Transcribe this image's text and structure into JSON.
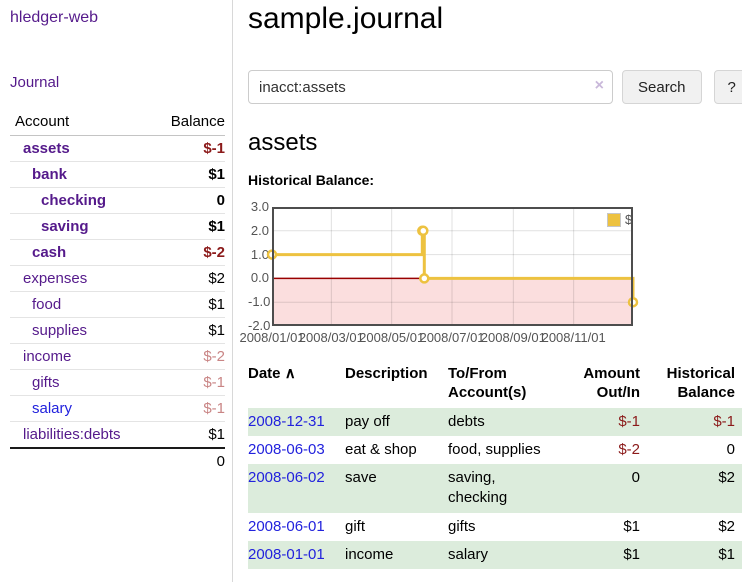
{
  "app": {
    "brand": "hledger-web",
    "nav_journal": "Journal"
  },
  "sidebar": {
    "header": {
      "account": "Account",
      "balance": "Balance"
    },
    "accounts": [
      {
        "name": "assets",
        "indent": 1,
        "bold": true,
        "link_color": "purple",
        "balance": "$-1",
        "balance_color": "neg-strong"
      },
      {
        "name": "bank",
        "indent": 2,
        "bold": true,
        "link_color": "purple",
        "balance": "$1",
        "balance_color": "plain"
      },
      {
        "name": "checking",
        "indent": 3,
        "bold": true,
        "link_color": "purple",
        "balance": "0",
        "balance_color": "plain"
      },
      {
        "name": "saving",
        "indent": 3,
        "bold": true,
        "link_color": "purple",
        "balance": "$1",
        "balance_color": "plain"
      },
      {
        "name": "cash",
        "indent": 2,
        "bold": true,
        "link_color": "purple",
        "balance": "$-2",
        "balance_color": "neg-strong"
      },
      {
        "name": "expenses",
        "indent": 1,
        "bold": false,
        "link_color": "purple",
        "balance": "$2",
        "balance_color": "plain"
      },
      {
        "name": "food",
        "indent": 2,
        "bold": false,
        "link_color": "purple",
        "balance": "$1",
        "balance_color": "plain"
      },
      {
        "name": "supplies",
        "indent": 2,
        "bold": false,
        "link_color": "purple",
        "balance": "$1",
        "balance_color": "plain"
      },
      {
        "name": "income",
        "indent": 1,
        "bold": false,
        "link_color": "purple",
        "balance": "$-2",
        "balance_color": "neg-soft"
      },
      {
        "name": "gifts",
        "indent": 2,
        "bold": false,
        "link_color": "purple",
        "balance": "$-1",
        "balance_color": "neg-soft"
      },
      {
        "name": "salary",
        "indent": 2,
        "bold": false,
        "link_color": "blue",
        "balance": "$-1",
        "balance_color": "neg-soft"
      },
      {
        "name": "liabilities:debts",
        "indent": 1,
        "bold": false,
        "link_color": "purple",
        "balance": "$1",
        "balance_color": "plain"
      }
    ],
    "total": "0"
  },
  "main": {
    "title": "sample.journal",
    "search": {
      "value": "inacct:assets",
      "clear_icon": "×",
      "button_label": "Search",
      "help_label": "?"
    },
    "account_heading": "assets",
    "chart_label": "Historical Balance:"
  },
  "chart_data": {
    "type": "line",
    "step": true,
    "title": "Historical Balance:",
    "x_range": [
      "2008-01-01",
      "2008-12-31"
    ],
    "y_range": [
      -2,
      3
    ],
    "x_ticks": [
      {
        "date": "2008-01-01",
        "label": "2008/01/01"
      },
      {
        "date": "2008-03-01",
        "label": "2008/03/01"
      },
      {
        "date": "2008-05-01",
        "label": "2008/05/01"
      },
      {
        "date": "2008-07-01",
        "label": "2008/07/01"
      },
      {
        "date": "2008-09-01",
        "label": "2008/09/01"
      },
      {
        "date": "2008-11-01",
        "label": "2008/11/01"
      }
    ],
    "y_ticks": [
      {
        "value": 3,
        "label": "3.0"
      },
      {
        "value": 2,
        "label": "2.0"
      },
      {
        "value": 1,
        "label": "1.0"
      },
      {
        "value": 0,
        "label": "0.0"
      },
      {
        "value": -1,
        "label": "-1.0"
      },
      {
        "value": -2,
        "label": "-2.0"
      }
    ],
    "series": [
      {
        "name": "$",
        "color": "#edc240",
        "points": [
          [
            "2008-01-01",
            1
          ],
          [
            "2008-06-01",
            2
          ],
          [
            "2008-06-02",
            2
          ],
          [
            "2008-06-03",
            0
          ],
          [
            "2008-12-31",
            -1
          ]
        ]
      }
    ],
    "legend_position": "top-right",
    "grid": true,
    "zero_line_color": "#990000",
    "below_zero_fill": "#fbdede",
    "border_color": "#4d4d4d"
  },
  "register": {
    "sort_arrow": "∧",
    "columns": [
      {
        "label": "Date",
        "align": "left",
        "sortable": true
      },
      {
        "label": "Description",
        "align": "left"
      },
      {
        "label": "To/From Account(s)",
        "align": "left"
      },
      {
        "label": "Amount Out/In",
        "align": "right"
      },
      {
        "label": "Historical Balance",
        "align": "right"
      }
    ],
    "rows": [
      {
        "date": "2008-12-31",
        "description": "pay off",
        "accounts": "debts",
        "amount": "$-1",
        "amount_negative": true,
        "balance": "$-1",
        "balance_negative": true,
        "shaded": true
      },
      {
        "date": "2008-06-03",
        "description": "eat & shop",
        "accounts": "food, supplies",
        "amount": "$-2",
        "amount_negative": true,
        "balance": "0",
        "balance_negative": false,
        "shaded": false
      },
      {
        "date": "2008-06-02",
        "description": "save",
        "accounts": "saving, checking",
        "amount": "0",
        "amount_negative": false,
        "balance": "$2",
        "balance_negative": false,
        "shaded": true
      },
      {
        "date": "2008-06-01",
        "description": "gift",
        "accounts": "gifts",
        "amount": "$1",
        "amount_negative": false,
        "balance": "$2",
        "balance_negative": false,
        "shaded": false
      },
      {
        "date": "2008-01-01",
        "description": "income",
        "accounts": "salary",
        "amount": "$1",
        "amount_negative": false,
        "balance": "$1",
        "balance_negative": false,
        "shaded": true
      }
    ]
  },
  "colors": {
    "link_purple": "#551a8b",
    "link_blue": "#2222dd",
    "negative_strong": "#8b1a1a",
    "negative_soft": "#c98585",
    "row_shade_green": "#dcecdc",
    "series_gold": "#edc240"
  }
}
